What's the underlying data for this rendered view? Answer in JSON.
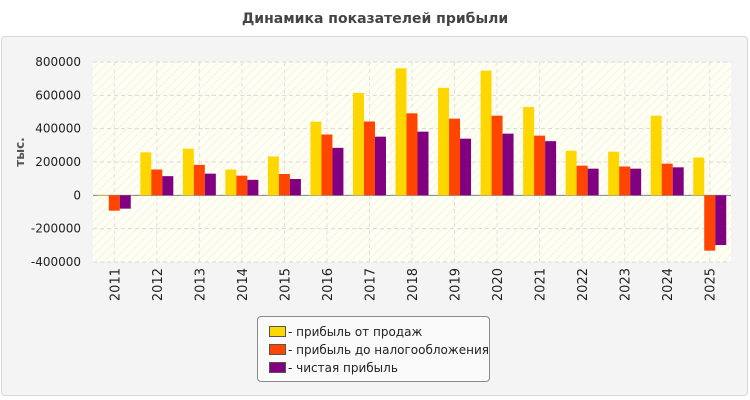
{
  "chart_data": {
    "type": "bar",
    "title": "Динамика показателей прибыли",
    "ylabel": "тыс.",
    "ylim": [
      -400000,
      800000
    ],
    "yticks": [
      "800000",
      "600000",
      "400000",
      "200000",
      "0",
      "-200000",
      "-400000"
    ],
    "categories": [
      "2011",
      "2012",
      "2013",
      "2014",
      "2015",
      "2016",
      "2017",
      "2018",
      "2019",
      "2020",
      "2021",
      "2022",
      "2023",
      "2024",
      "2025"
    ],
    "series": [
      {
        "name": "- прибыль от продаж",
        "color": "#ffd700",
        "values": [
          0,
          258000,
          280000,
          155000,
          233000,
          442000,
          615000,
          762000,
          645000,
          748000,
          530000,
          268000,
          262000,
          478000,
          227000
        ]
      },
      {
        "name": "- прибыль до налогообложения",
        "color": "#ff4500",
        "values": [
          -92000,
          155000,
          183000,
          118000,
          128000,
          365000,
          443000,
          492000,
          460000,
          478000,
          358000,
          178000,
          173000,
          190000,
          -332000
        ]
      },
      {
        "name": "- чистая прибыль",
        "color": "#800080",
        "values": [
          -80000,
          115000,
          130000,
          93000,
          98000,
          285000,
          352000,
          382000,
          340000,
          370000,
          325000,
          160000,
          160000,
          168000,
          -298000
        ]
      }
    ],
    "grid": true,
    "legend_position": "bottom"
  }
}
